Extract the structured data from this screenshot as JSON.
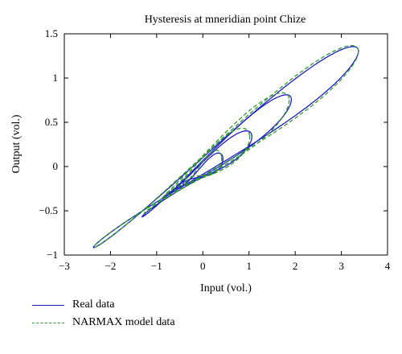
{
  "chart_data": {
    "type": "line",
    "title": "Hysteresis at mneridian point Chize",
    "xlabel": "Input (vol.)",
    "ylabel": "Output (vol.)",
    "xlim": [
      -3,
      4
    ],
    "ylim": [
      -1,
      1.5
    ],
    "xticks": [
      "−3",
      "−2",
      "−1",
      "0",
      "1",
      "2",
      "3",
      "4"
    ],
    "yticks": [
      "−1",
      "−0.5",
      "0",
      "0.5",
      "1",
      "1.5"
    ],
    "grid": false,
    "legend_position": "below",
    "series": [
      {
        "name": "Real data",
        "color": "#1f1fc8",
        "style": "solid",
        "loops": [
          {
            "x0": 0.5,
            "y0": 0.2,
            "a": 3.0,
            "b": 0.1,
            "ang": 17,
            "sk": 0.08
          },
          {
            "x0": 0.3,
            "y0": 0.1,
            "a": 1.7,
            "b": 0.09,
            "ang": 18,
            "sk": 0.06
          },
          {
            "x0": 0.1,
            "y0": 0.0,
            "a": 1.0,
            "b": 0.075,
            "ang": 16,
            "sk": 0.05
          },
          {
            "x0": 0.0,
            "y0": -0.05,
            "a": 0.45,
            "b": 0.05,
            "ang": 15,
            "sk": 0.04
          }
        ]
      },
      {
        "name": "NARMAX model data",
        "color": "#2e9b2e",
        "style": "dashed",
        "loops": [
          {
            "x0": 0.5,
            "y0": 0.2,
            "a": 3.0,
            "b": 0.115,
            "ang": 17,
            "sk": 0.09
          },
          {
            "x0": 0.3,
            "y0": 0.12,
            "a": 1.65,
            "b": 0.12,
            "ang": 18,
            "sk": 0.07
          },
          {
            "x0": 0.1,
            "y0": 0.02,
            "a": 0.95,
            "b": 0.1,
            "ang": 16,
            "sk": 0.06
          },
          {
            "x0": 0.0,
            "y0": -0.03,
            "a": 0.42,
            "b": 0.06,
            "ang": 15,
            "sk": 0.05
          }
        ]
      }
    ]
  }
}
